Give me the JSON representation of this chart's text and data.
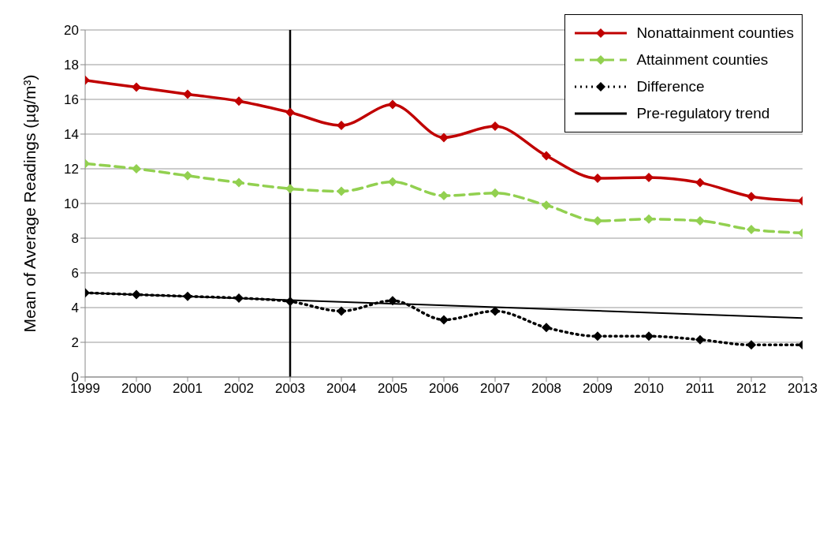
{
  "chart_data": {
    "type": "line",
    "ylabel": "Mean of Average Readings (µg/m³)",
    "x": [
      1999,
      2000,
      2001,
      2002,
      2003,
      2004,
      2005,
      2006,
      2007,
      2008,
      2009,
      2010,
      2011,
      2012,
      2013
    ],
    "series": [
      {
        "name": "Nonattainment counties",
        "color": "#c00000",
        "marker": "diamond",
        "line_style": "solid",
        "values": [
          17.1,
          16.7,
          16.3,
          15.9,
          15.25,
          14.5,
          15.7,
          13.8,
          14.45,
          12.75,
          11.45,
          11.5,
          11.2,
          10.4,
          10.15
        ]
      },
      {
        "name": "Attainment counties",
        "color": "#92d050",
        "marker": "diamond",
        "line_style": "dashed",
        "values": [
          12.3,
          12.0,
          11.6,
          11.2,
          10.85,
          10.7,
          11.25,
          10.45,
          10.6,
          9.9,
          9.0,
          9.1,
          9.0,
          8.5,
          8.3
        ]
      },
      {
        "name": "Difference",
        "color": "#000000",
        "marker": "diamond",
        "line_style": "dotted",
        "values": [
          4.85,
          4.75,
          4.65,
          4.55,
          4.35,
          3.8,
          4.4,
          3.3,
          3.8,
          2.85,
          2.35,
          2.35,
          2.15,
          1.85,
          1.85
        ]
      },
      {
        "name": "Pre-regulatory trend",
        "color": "#000000",
        "marker": "none",
        "line_style": "solid",
        "x": [
          1999,
          2013
        ],
        "values": [
          4.85,
          3.4
        ]
      }
    ],
    "xlim": [
      1999,
      2013
    ],
    "xticks": [
      1999,
      2000,
      2001,
      2002,
      2003,
      2004,
      2005,
      2006,
      2007,
      2008,
      2009,
      2010,
      2011,
      2012,
      2013
    ],
    "ylim": [
      0,
      20
    ],
    "yticks": [
      0,
      2,
      4,
      6,
      8,
      10,
      12,
      14,
      16,
      18,
      20
    ],
    "grid": "y",
    "legend": "top right",
    "ref_lines": [
      {
        "axis": "x",
        "value": 2003,
        "color": "#000000",
        "line_style": "solid"
      }
    ]
  }
}
